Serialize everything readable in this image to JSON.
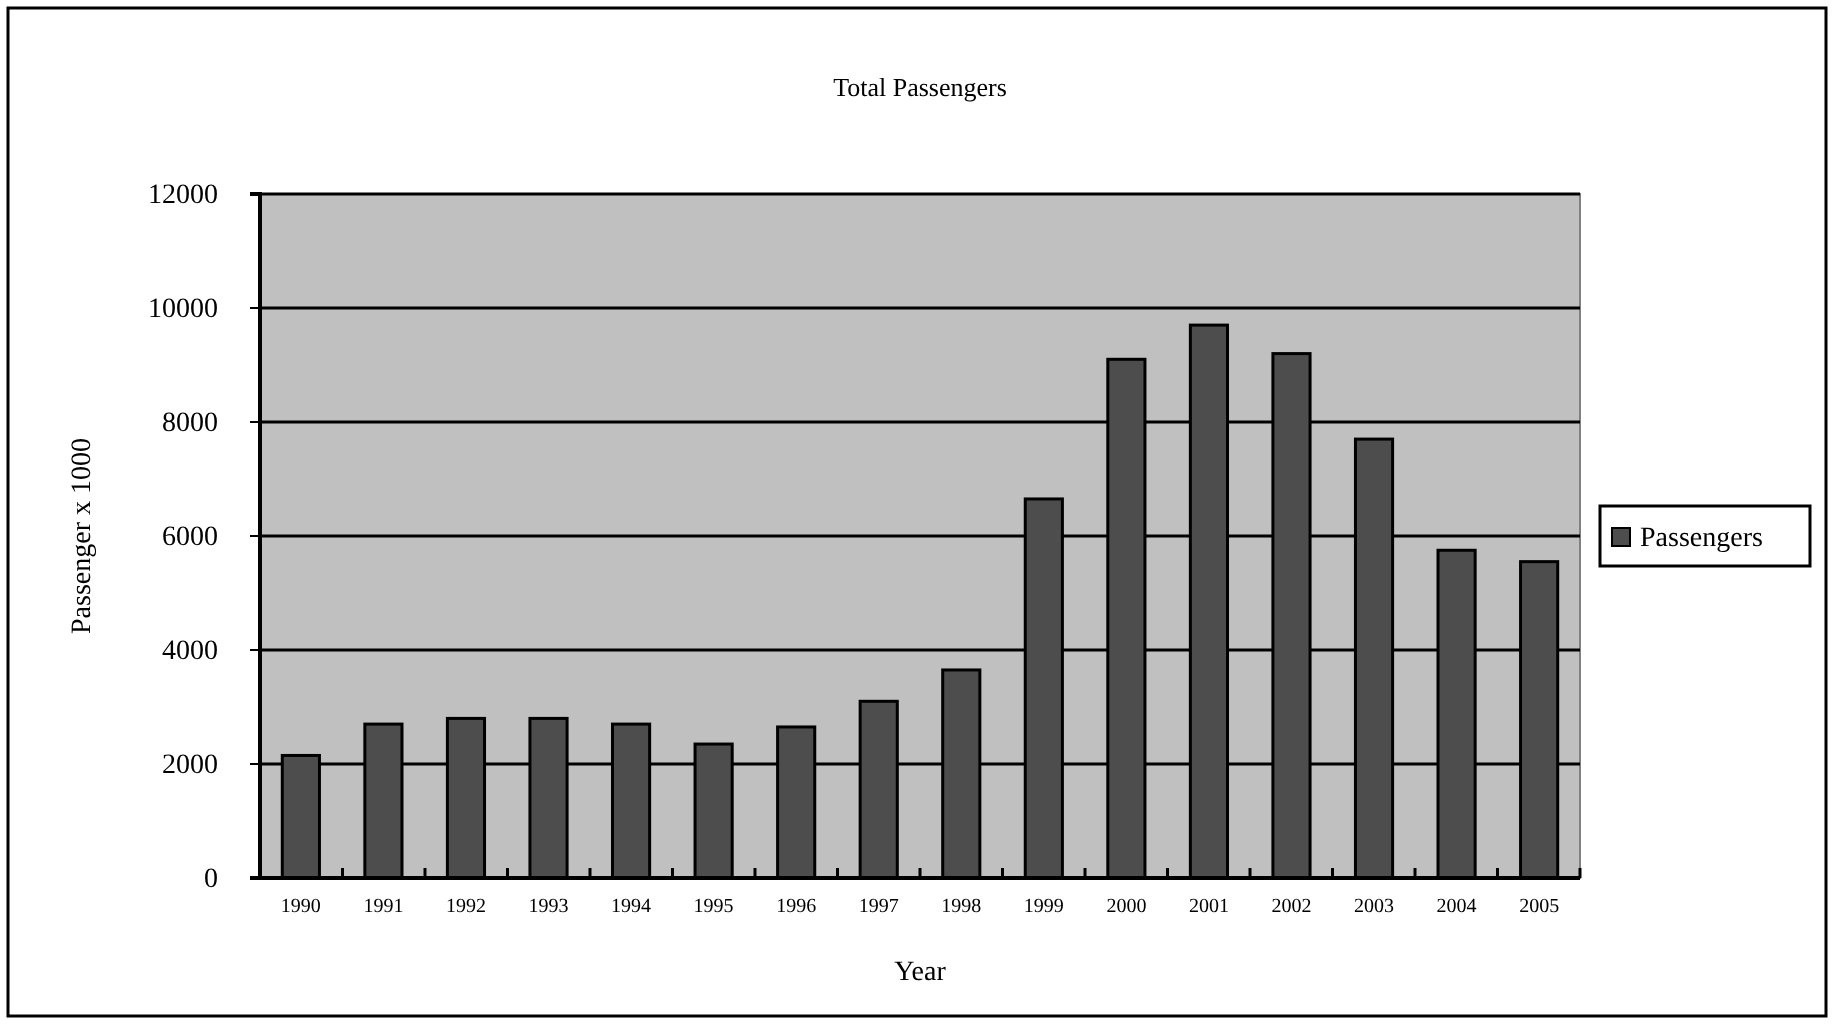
{
  "chart_data": {
    "type": "bar",
    "title": "Total Passengers",
    "xlabel": "Year",
    "ylabel": "Passenger x 1000",
    "categories": [
      "1990",
      "1991",
      "1992",
      "1993",
      "1994",
      "1995",
      "1996",
      "1997",
      "1998",
      "1999",
      "2000",
      "2001",
      "2002",
      "2003",
      "2004",
      "2005"
    ],
    "series": [
      {
        "name": "Passengers",
        "color": "#4d4d4d",
        "values": [
          2150,
          2700,
          2800,
          2800,
          2700,
          2350,
          2650,
          3100,
          3650,
          6650,
          9100,
          9700,
          9200,
          7700,
          5750,
          5550
        ]
      }
    ],
    "ylim": [
      0,
      12000
    ],
    "yticks": [
      0,
      2000,
      4000,
      6000,
      8000,
      10000,
      12000
    ],
    "grid": "y",
    "legend": "right"
  }
}
